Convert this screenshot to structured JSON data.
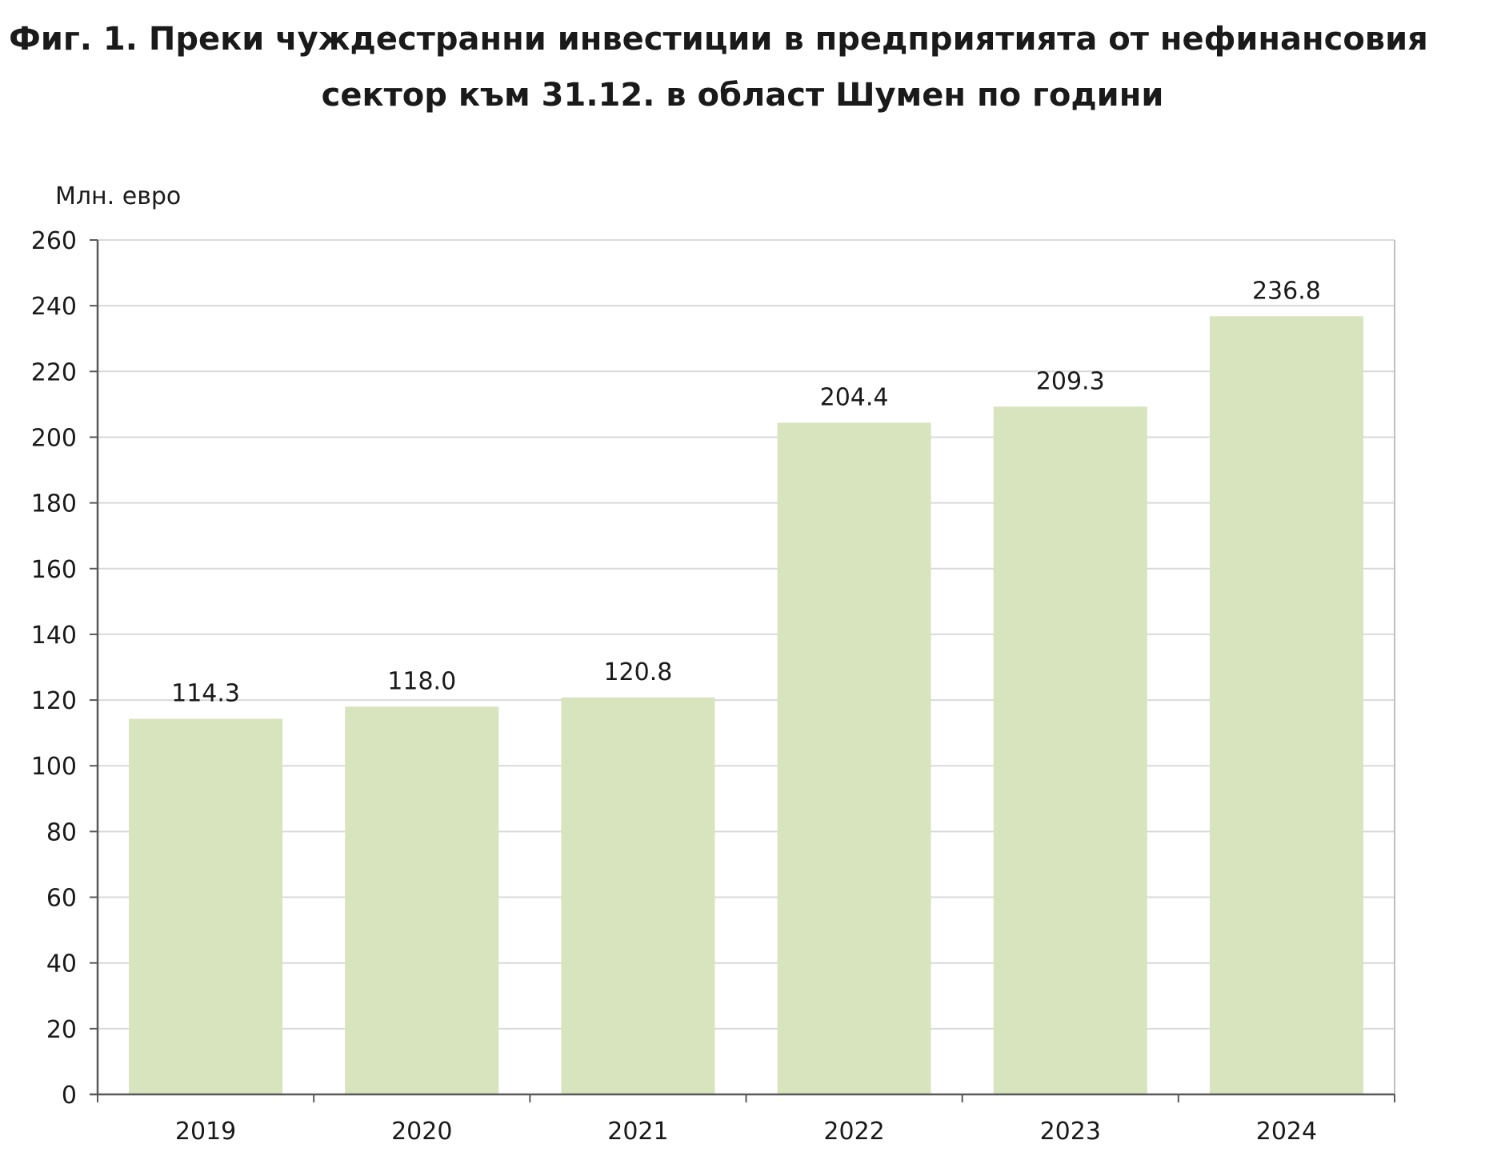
{
  "chart_data": {
    "type": "bar",
    "title": "Фиг. 1. Преки чуждестранни инвестиции в предприятията от нефинансовия сектор към 31.12. в област Шумен по години",
    "title_lines": [
      "Фиг. 1. Преки чуждестранни инвестиции в предприятията от нефинансовия",
      "сектор към 31.12. в област Шумен по години"
    ],
    "ylabel": "Млн. евро",
    "xlabel": "",
    "categories": [
      "2019",
      "2020",
      "2021",
      "2022",
      "2023",
      "2024"
    ],
    "values": [
      114.3,
      118.0,
      120.8,
      204.4,
      209.3,
      236.8
    ],
    "data_labels": [
      "114.3",
      "118.0",
      "120.8",
      "204.4",
      "209.3",
      "236.8"
    ],
    "ylim": [
      0,
      260
    ],
    "y_ticks": [
      "0",
      "20",
      "40",
      "60",
      "80",
      "100",
      "120",
      "140",
      "160",
      "180",
      "200",
      "220",
      "240",
      "260"
    ],
    "grid": true,
    "colors": {
      "bar": "#d7e4bd",
      "grid": "#d9d9d9",
      "axis": "#595959",
      "frame": "#bfbfbf"
    }
  }
}
